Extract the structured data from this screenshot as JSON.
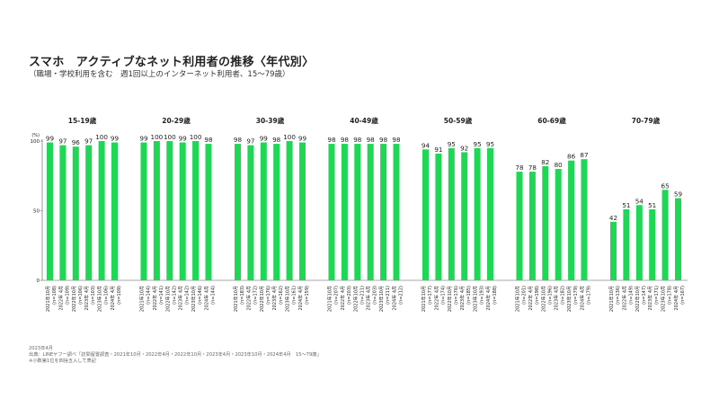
{
  "title": "スマホ　アクティブなネット利用者の推移〈年代別〉",
  "subtitle": "（職場・学校利用を含む　週1回以上のインターネット利用者、15～79歳）",
  "notes": [
    "2023年4月",
    "出典：LINEヤフー調べ「訪問留置調査・2021年10月・2022年4月・2022年10月・2023年4月・2023年10月・2024年4月　15～79歳」",
    "※小数第1位を四捨五入して表記"
  ],
  "chart_data": {
    "type": "bar",
    "colors": {
      "bar": "#1fd655",
      "text": "#222222",
      "axis": "#555555"
    },
    "y_unit": "(%)",
    "ylim": [
      0,
      100
    ],
    "y_ticks": [
      0,
      50,
      100
    ],
    "periods": [
      "2021年10月",
      "2022年 4月",
      "2022年10月",
      "2023年 4月",
      "2023年10月",
      "2024年 4月"
    ],
    "groups": [
      {
        "name": "15-19歳",
        "values": [
          99,
          97,
          96,
          97,
          100,
          99
        ],
        "n": [
          "(n=108)",
          "(n=109)",
          "(n=106)",
          "(n=103)",
          "(n=106)",
          "(n=109)"
        ]
      },
      {
        "name": "20-29歳",
        "values": [
          99,
          100,
          100,
          99,
          100,
          98
        ],
        "n": [
          "(n=144)",
          "(n=141)",
          "(n=142)",
          "(n=142)",
          "(n=146)",
          "(n=144)"
        ]
      },
      {
        "name": "30-39歳",
        "values": [
          98,
          97,
          99,
          98,
          100,
          99
        ],
        "n": [
          "(n=183)",
          "(n=172)",
          "(n=176)",
          "(n=162)",
          "(n=161)",
          "(n=159)"
        ]
      },
      {
        "name": "40-49歳",
        "values": [
          98,
          98,
          98,
          98,
          98,
          98
        ],
        "n": [
          "(n=207)",
          "(n=203)",
          "(n=211)",
          "(n=203)",
          "(n=211)",
          "(n=212)"
        ]
      },
      {
        "name": "50-59歳",
        "values": [
          94,
          91,
          95,
          92,
          95,
          95
        ],
        "n": [
          "(n=177)",
          "(n=174)",
          "(n=176)",
          "(n=185)",
          "(n=193)",
          "(n=188)"
        ]
      },
      {
        "name": "60-69歳",
        "values": [
          78,
          78,
          82,
          80,
          86,
          87
        ],
        "n": [
          "(n=201)",
          "(n=198)",
          "(n=196)",
          "(n=182)",
          "(n=179)",
          "(n=179)"
        ]
      },
      {
        "name": "70-79歳",
        "values": [
          42,
          51,
          54,
          51,
          65,
          59
        ],
        "n": [
          "(n=136)",
          "(n=149)",
          "(n=147)",
          "(n=171)",
          "(n=178)",
          "(n=167)"
        ]
      }
    ]
  }
}
